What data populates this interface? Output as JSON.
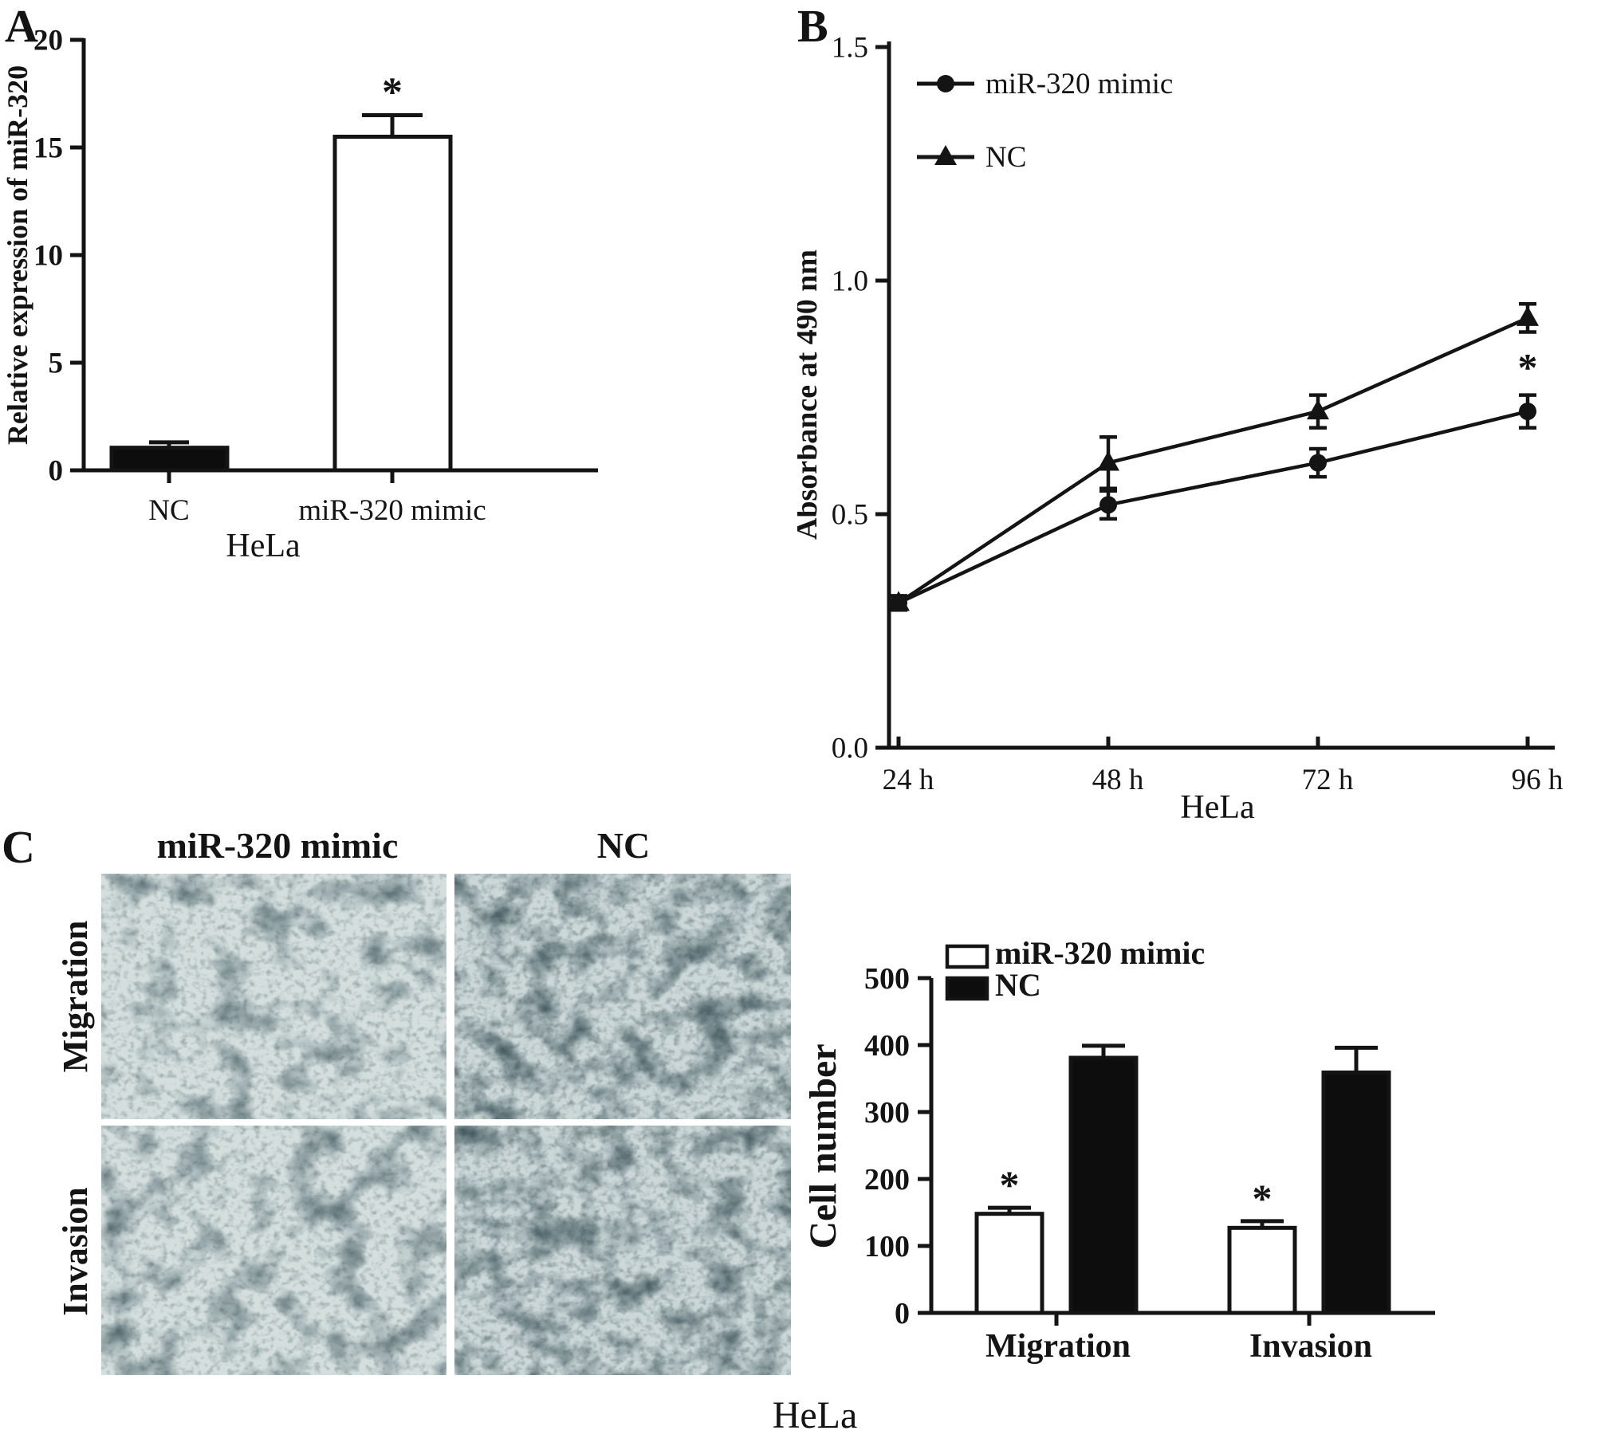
{
  "figure": {
    "background": "#ffffff",
    "ink_color": "#141414",
    "panels": {
      "a": {
        "letter": "A"
      },
      "b": {
        "letter": "B"
      },
      "c": {
        "letter": "C"
      }
    }
  },
  "panel_c": {
    "col_headers": [
      "miR-320 mimic",
      "NC"
    ],
    "row_labels": [
      "Migration",
      "Invasion"
    ],
    "caption": "HeLa",
    "micrographs": [
      {
        "row": "Migration",
        "col": "miR-320 mimic",
        "density": "sparse"
      },
      {
        "row": "Migration",
        "col": "NC",
        "density": "dense"
      },
      {
        "row": "Invasion",
        "col": "miR-320 mimic",
        "density": "sparse"
      },
      {
        "row": "Invasion",
        "col": "NC",
        "density": "dense"
      }
    ],
    "stain_colors": {
      "background": "#d3dedd",
      "cells": "#3d545c"
    }
  },
  "chart_data": [
    {
      "id": "panel_a",
      "type": "bar",
      "title": "",
      "categories": [
        "NC",
        "miR-320 mimic"
      ],
      "values": [
        1.05,
        15.5
      ],
      "errors": [
        0.25,
        1.0
      ],
      "bar_fills": [
        "#0d0d0d",
        "#ffffff"
      ],
      "significance": [
        "",
        "*"
      ],
      "xlabel": "HeLa",
      "ylabel": "Relative  expression of miR-320",
      "ylim": [
        0,
        20
      ],
      "yticks": [
        0,
        5,
        10,
        15,
        20
      ],
      "grid": false,
      "legend_position": "none"
    },
    {
      "id": "panel_b",
      "type": "line",
      "title": "",
      "categories": [
        "24 h",
        "48 h",
        "72 h",
        "96 h"
      ],
      "series": [
        {
          "name": "miR-320 mimic",
          "marker": "circle",
          "values": [
            0.31,
            0.52,
            0.61,
            0.72
          ],
          "errors": [
            0.015,
            0.03,
            0.03,
            0.035
          ]
        },
        {
          "name": "NC",
          "marker": "triangle",
          "values": [
            0.31,
            0.61,
            0.72,
            0.92
          ],
          "errors": [
            0.015,
            0.055,
            0.035,
            0.03
          ]
        }
      ],
      "significance": {
        "series": 0,
        "point": 3,
        "symbol": "*"
      },
      "xlabel": "HeLa",
      "ylabel": "Absorbance at 490 nm",
      "ylim": [
        0,
        1.5
      ],
      "yticks": [
        0,
        0.5,
        1,
        1.5
      ],
      "ytick_labels": [
        "0.0",
        "0.5",
        "1.0",
        "1.5"
      ],
      "grid": false,
      "legend_position": "top-left",
      "line_color": "#1a1a1a"
    },
    {
      "id": "panel_c_chart",
      "type": "bar",
      "title": "",
      "categories": [
        "Migration",
        "Invasion"
      ],
      "series": [
        {
          "name": "miR-320 mimic",
          "fill": "#ffffff",
          "values": [
            148,
            127
          ],
          "errors": [
            9,
            10
          ],
          "significance": [
            "*",
            "*"
          ]
        },
        {
          "name": "NC",
          "fill": "#0d0d0d",
          "values": [
            381,
            359
          ],
          "errors": [
            18,
            37
          ],
          "significance": [
            "",
            ""
          ]
        }
      ],
      "xlabel": "",
      "ylabel": "Cell number",
      "ylim": [
        0,
        500
      ],
      "yticks": [
        0,
        100,
        200,
        300,
        400,
        500
      ],
      "grid": false,
      "legend_position": "top-left"
    }
  ]
}
